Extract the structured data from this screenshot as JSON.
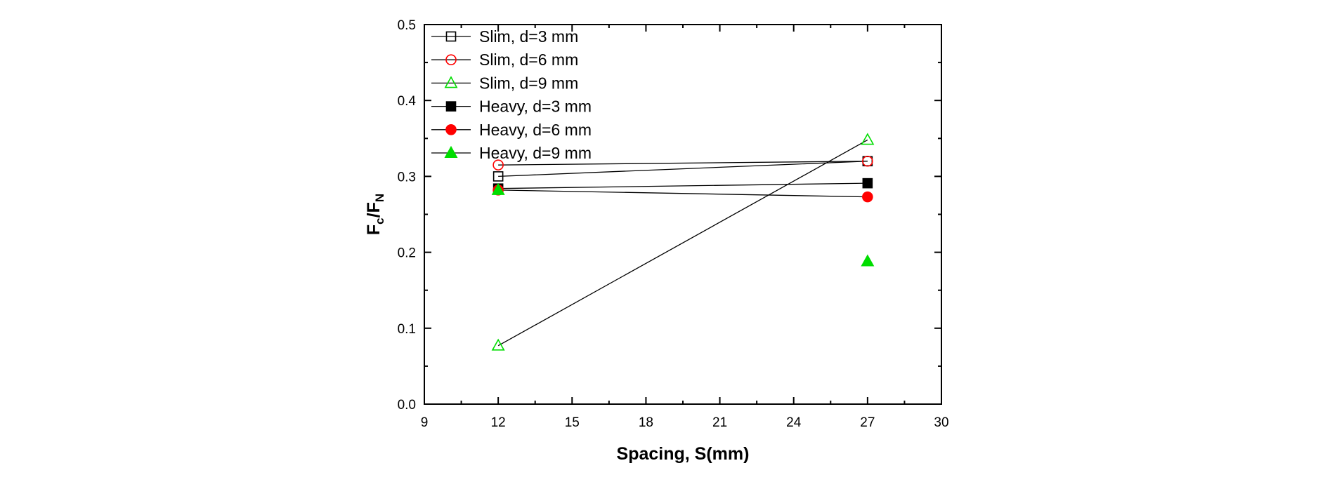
{
  "chart_data": {
    "type": "scatter",
    "xlabel": "Spacing, S(mm)",
    "ylabel_main": "F",
    "ylabel_sub1": "c",
    "ylabel_mid": "/F",
    "ylabel_sub2": "N",
    "xlim": [
      9,
      30
    ],
    "ylim": [
      0.0,
      0.5
    ],
    "xticks": [
      9,
      12,
      15,
      18,
      21,
      24,
      27,
      30
    ],
    "yticks": [
      0.0,
      0.1,
      0.2,
      0.3,
      0.4,
      0.5
    ],
    "xtick_labels": [
      "9",
      "12",
      "15",
      "18",
      "21",
      "24",
      "27",
      "30"
    ],
    "ytick_labels": [
      "0.0",
      "0.1",
      "0.2",
      "0.3",
      "0.4",
      "0.5"
    ],
    "grid": false,
    "legend_position": "top-left",
    "series": [
      {
        "name": "Slim, d=3 mm",
        "marker": "square",
        "filled": false,
        "color": "#000000",
        "line": true,
        "x": [
          12,
          27
        ],
        "y": [
          0.3,
          0.32
        ]
      },
      {
        "name": "Slim, d=6 mm",
        "marker": "circle",
        "filled": false,
        "color": "#ff0000",
        "line": true,
        "x": [
          12,
          27
        ],
        "y": [
          0.315,
          0.32
        ]
      },
      {
        "name": "Slim, d=9 mm",
        "marker": "triangle",
        "filled": false,
        "color": "#00dd00",
        "line": true,
        "x": [
          12,
          27
        ],
        "y": [
          0.077,
          0.348
        ]
      },
      {
        "name": "Heavy, d=3 mm",
        "marker": "square",
        "filled": true,
        "color": "#000000",
        "line": true,
        "x": [
          12,
          27
        ],
        "y": [
          0.284,
          0.291
        ]
      },
      {
        "name": "Heavy, d=6 mm",
        "marker": "circle",
        "filled": true,
        "color": "#ff0000",
        "line": true,
        "x": [
          12,
          27
        ],
        "y": [
          0.282,
          0.273
        ]
      },
      {
        "name": "Heavy, d=9 mm",
        "marker": "triangle",
        "filled": true,
        "color": "#00dd00",
        "line": false,
        "x": [
          12,
          27
        ],
        "y": [
          0.282,
          0.188
        ]
      }
    ]
  }
}
